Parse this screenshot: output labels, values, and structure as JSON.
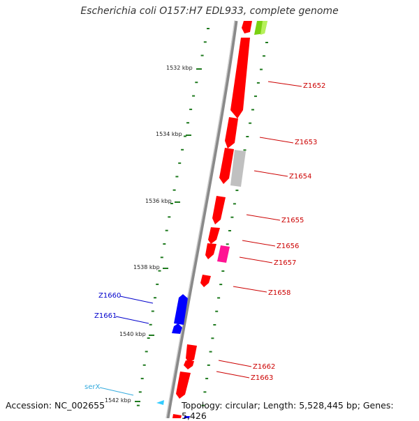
{
  "title": "Escherichia coli O157:H7 EDL933, complete genome",
  "accession": "Accession: NC_002655",
  "topology": "Topology: circular; Length: 5,528,445 bp; Genes: 5,426",
  "colors": {
    "backbone": "#8a8a8a",
    "tick": "#1f7a1f",
    "forward_gene": "#ff0000",
    "reverse_gene": "#0000ff",
    "pseudo_gene": "#c0c0c0",
    "pink_gene": "#ff1493",
    "green_gene": "#7ad111",
    "trna": "#33ccff"
  },
  "scale_labels": [
    "1532 kbp",
    "1534 kbp",
    "1536 kbp",
    "1538 kbp",
    "1540 kbp",
    "1542 kbp"
  ],
  "gene_labels_right": [
    "Z1652",
    "Z1653",
    "Z1654",
    "Z1655",
    "Z1656",
    "Z1657",
    "Z1658",
    "Z1662",
    "Z1663"
  ],
  "gene_labels_left": [
    "Z1660",
    "Z1661",
    "serX"
  ]
}
